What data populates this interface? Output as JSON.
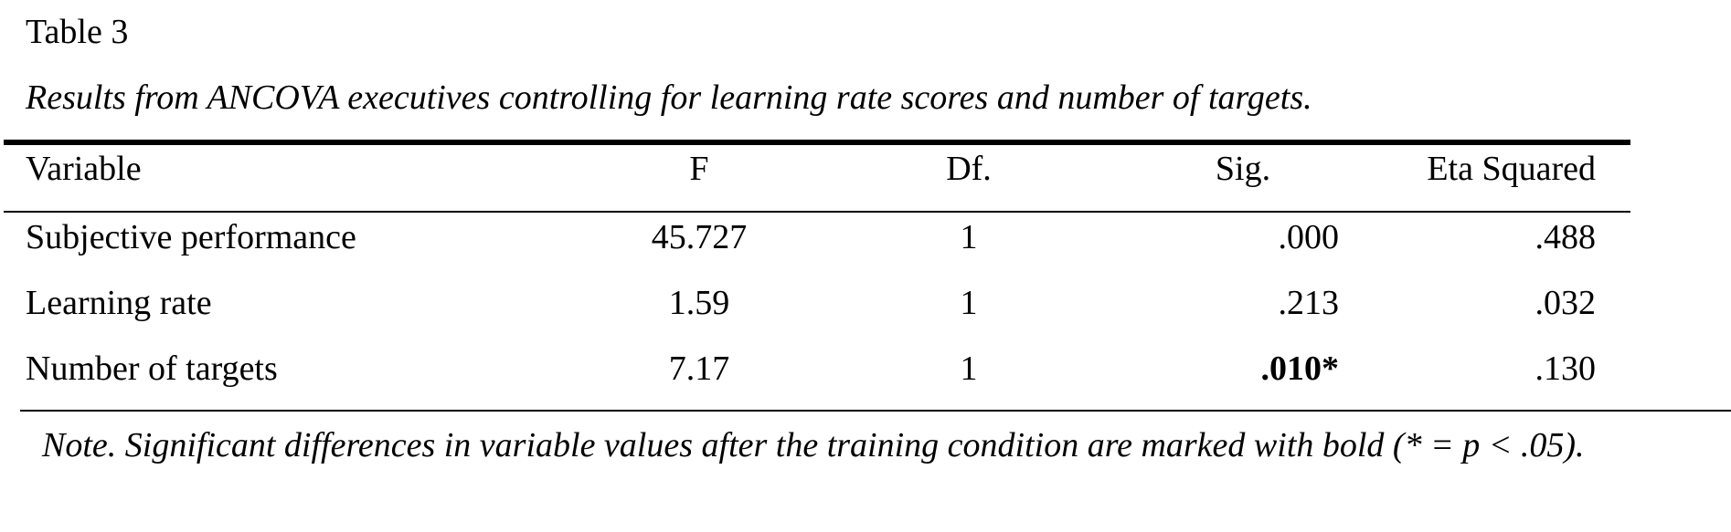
{
  "caption": {
    "label": "Table 3",
    "title": "Results from ANCOVA executives controlling for learning rate scores and number of targets."
  },
  "table": {
    "headers": [
      "Variable",
      "F",
      "Df.",
      "Sig.",
      "Eta Squared"
    ],
    "rows": [
      {
        "variable": "Subjective performance",
        "f": "45.727",
        "df": "1",
        "sig": ".000",
        "eta": ".488",
        "sig_bold": false
      },
      {
        "variable": "Learning rate",
        "f": "1.59",
        "df": "1",
        "sig": ".213",
        "eta": ".032",
        "sig_bold": false
      },
      {
        "variable": "Number of targets",
        "f": "7.17",
        "df": "1",
        "sig": ".010*",
        "eta": ".130",
        "sig_bold": true
      }
    ]
  },
  "note": {
    "label": "Note.",
    "text": " Significant differences in variable values after the training condition are marked with bold (* = p < .05)."
  }
}
